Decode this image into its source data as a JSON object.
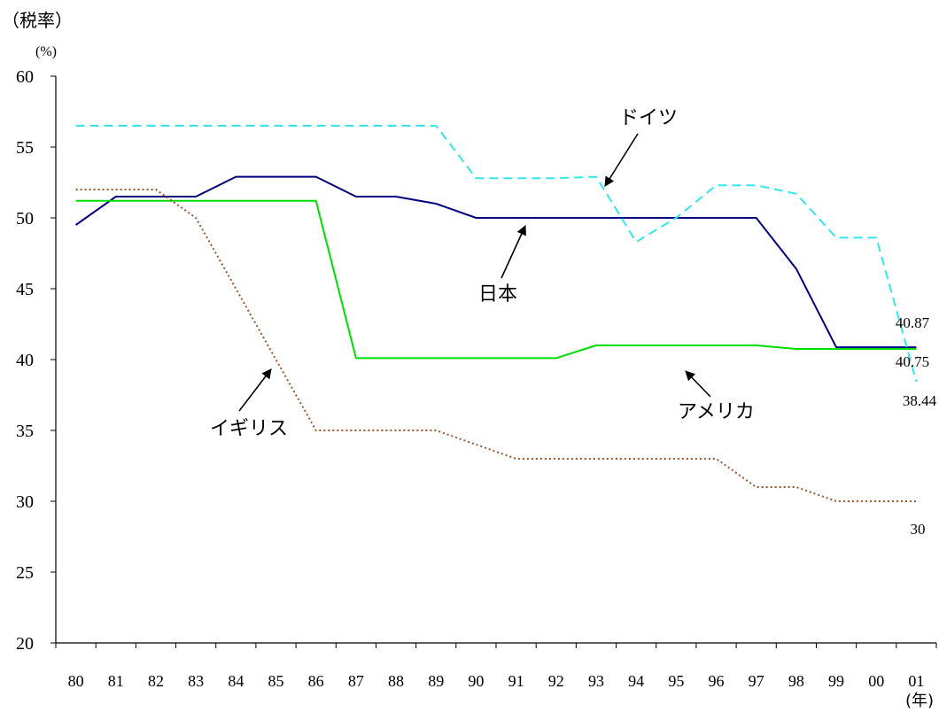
{
  "chart_data": {
    "type": "line",
    "title": "",
    "y_title": "（税率）",
    "y_unit": "(%)",
    "x_unit": "(年)",
    "categories": [
      "80",
      "81",
      "82",
      "83",
      "84",
      "85",
      "86",
      "87",
      "88",
      "89",
      "90",
      "91",
      "92",
      "93",
      "94",
      "95",
      "96",
      "97",
      "98",
      "99",
      "00",
      "01"
    ],
    "ylim": [
      20,
      60
    ],
    "yticks": [
      20,
      25,
      30,
      35,
      40,
      45,
      50,
      55,
      60
    ],
    "grid": false,
    "series": [
      {
        "name": "日本",
        "color": "#000080",
        "style": "solid",
        "values": [
          49.5,
          51.5,
          51.5,
          51.5,
          52.9,
          52.9,
          52.9,
          51.5,
          51.5,
          51.0,
          50.0,
          50.0,
          50.0,
          50.0,
          50.0,
          50.0,
          50.0,
          50.0,
          46.4,
          40.87,
          40.87,
          40.87
        ],
        "end_label": "40.87"
      },
      {
        "name": "アメリカ",
        "color": "#00dd00",
        "style": "solid",
        "values": [
          51.2,
          51.2,
          51.2,
          51.2,
          51.2,
          51.2,
          51.2,
          40.1,
          40.1,
          40.1,
          40.1,
          40.1,
          40.1,
          41.0,
          41.0,
          41.0,
          41.0,
          41.0,
          40.75,
          40.75,
          40.75,
          40.75
        ],
        "end_label": "40.75"
      },
      {
        "name": "ドイツ",
        "color": "#33e6ee",
        "style": "dashed",
        "values": [
          56.5,
          56.5,
          56.5,
          56.5,
          56.5,
          56.5,
          56.5,
          56.5,
          56.5,
          56.5,
          52.8,
          52.8,
          52.8,
          52.9,
          48.3,
          50.0,
          52.3,
          52.3,
          51.7,
          48.6,
          48.6,
          38.44
        ],
        "end_label": "38.44"
      },
      {
        "name": "イギリス",
        "color": "#a0522d",
        "style": "dotted",
        "values": [
          52.0,
          52.0,
          52.0,
          50.0,
          45.0,
          40.0,
          35.0,
          35.0,
          35.0,
          35.0,
          34.0,
          33.0,
          33.0,
          33.0,
          33.0,
          33.0,
          33.0,
          31.0,
          31.0,
          30.0,
          30.0,
          30.0
        ],
        "end_label": "30"
      }
    ]
  }
}
